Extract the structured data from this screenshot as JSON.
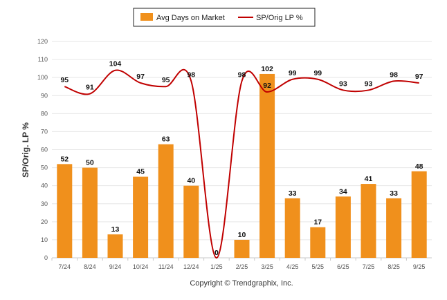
{
  "chart_data": {
    "type": "bar+line",
    "categories": [
      "7/24",
      "8/24",
      "9/24",
      "10/24",
      "11/24",
      "12/24",
      "1/25",
      "2/25",
      "3/25",
      "4/25",
      "5/25",
      "6/25",
      "7/25",
      "8/25",
      "9/25"
    ],
    "series": [
      {
        "name": "Avg Days on Market",
        "type": "bar",
        "color": "#F0901C",
        "values": [
          52,
          50,
          13,
          45,
          63,
          40,
          0,
          10,
          102,
          33,
          17,
          34,
          41,
          33,
          48
        ]
      },
      {
        "name": "SP/Orig LP %",
        "type": "line",
        "color": "#C00000",
        "values": [
          95,
          91,
          104,
          97,
          95,
          98,
          0,
          98,
          92,
          99,
          99,
          93,
          93,
          98,
          97
        ]
      }
    ],
    "ylabel": "SP/Orig. LP %",
    "xlabel": "",
    "ylim": [
      0,
      120
    ],
    "yticks": [
      0,
      10,
      20,
      30,
      40,
      50,
      60,
      70,
      80,
      90,
      100,
      110,
      120
    ],
    "grid": true,
    "legend_position": "top-center",
    "credit": "Copyright © Trendgraphix, Inc."
  }
}
